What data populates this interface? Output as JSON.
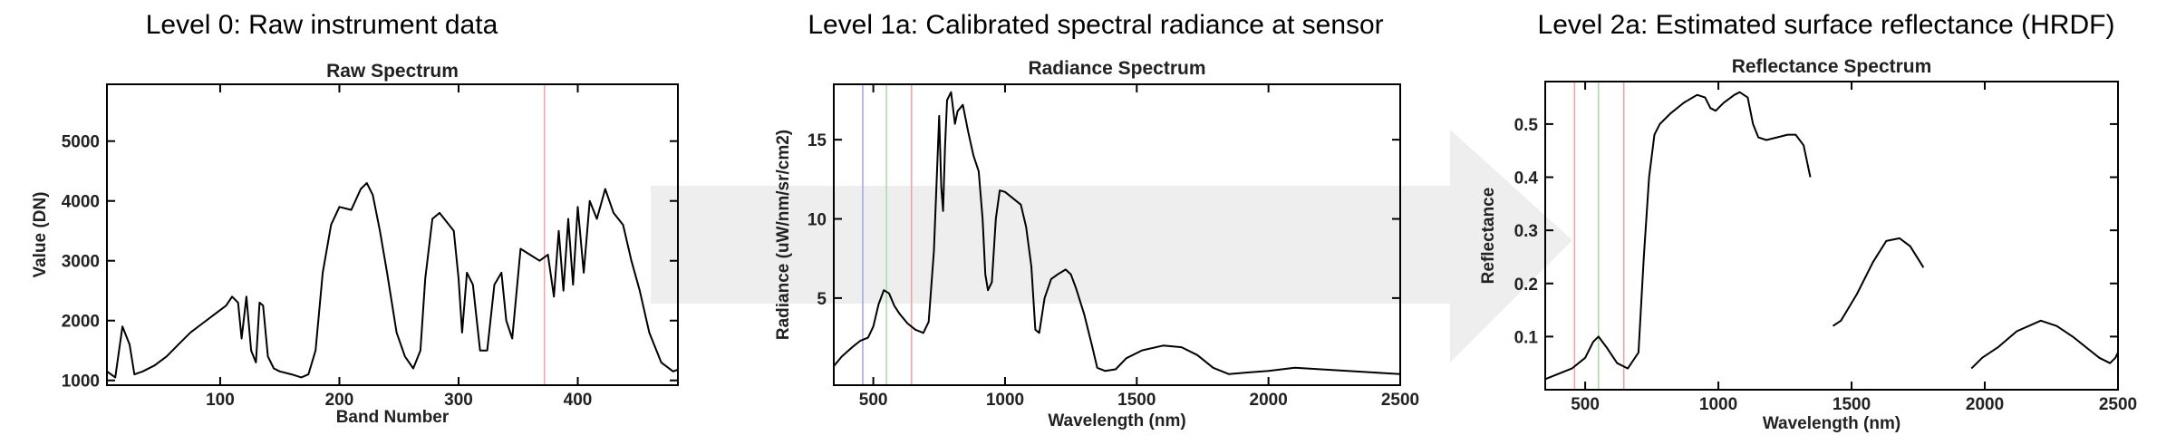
{
  "panels": [
    {
      "heading": "Level 0: Raw instrument data",
      "chart_data": {
        "type": "line",
        "title": "Raw Spectrum",
        "xlabel": "Band Number",
        "ylabel": "Value (DN)",
        "xlim": [
          5,
          484
        ],
        "ylim": [
          920,
          5950
        ],
        "x_ticks": [
          100,
          200,
          300,
          400
        ],
        "y_ticks": [
          1000,
          2000,
          3000,
          4000,
          5000
        ],
        "markers": [
          {
            "x": 372,
            "color": "#f2a0a0"
          }
        ],
        "series": [
          {
            "color": "#000000",
            "gaps": [],
            "points": [
              [
                5,
                1150
              ],
              [
                12,
                1050
              ],
              [
                18,
                1900
              ],
              [
                24,
                1600
              ],
              [
                28,
                1100
              ],
              [
                35,
                1150
              ],
              [
                45,
                1250
              ],
              [
                55,
                1400
              ],
              [
                65,
                1600
              ],
              [
                75,
                1800
              ],
              [
                85,
                1950
              ],
              [
                95,
                2100
              ],
              [
                105,
                2250
              ],
              [
                110,
                2400
              ],
              [
                115,
                2300
              ],
              [
                118,
                1700
              ],
              [
                122,
                2400
              ],
              [
                126,
                1500
              ],
              [
                130,
                1300
              ],
              [
                133,
                2300
              ],
              [
                136,
                2250
              ],
              [
                140,
                1400
              ],
              [
                145,
                1200
              ],
              [
                150,
                1150
              ],
              [
                160,
                1100
              ],
              [
                168,
                1050
              ],
              [
                174,
                1100
              ],
              [
                180,
                1500
              ],
              [
                186,
                2800
              ],
              [
                193,
                3600
              ],
              [
                200,
                3900
              ],
              [
                210,
                3850
              ],
              [
                218,
                4200
              ],
              [
                223,
                4300
              ],
              [
                228,
                4100
              ],
              [
                234,
                3500
              ],
              [
                240,
                2800
              ],
              [
                248,
                1800
              ],
              [
                255,
                1400
              ],
              [
                262,
                1200
              ],
              [
                268,
                1500
              ],
              [
                272,
                2700
              ],
              [
                278,
                3700
              ],
              [
                284,
                3800
              ],
              [
                290,
                3650
              ],
              [
                296,
                3500
              ],
              [
                300,
                2700
              ],
              [
                303,
                1800
              ],
              [
                307,
                2800
              ],
              [
                312,
                2600
              ],
              [
                318,
                1500
              ],
              [
                324,
                1500
              ],
              [
                330,
                2600
              ],
              [
                336,
                2800
              ],
              [
                340,
                2000
              ],
              [
                345,
                1700
              ],
              [
                352,
                3200
              ],
              [
                360,
                3100
              ],
              [
                368,
                3000
              ],
              [
                375,
                3100
              ],
              [
                380,
                2400
              ],
              [
                384,
                3500
              ],
              [
                388,
                2500
              ],
              [
                392,
                3700
              ],
              [
                396,
                2600
              ],
              [
                400,
                3900
              ],
              [
                405,
                2800
              ],
              [
                410,
                4000
              ],
              [
                416,
                3700
              ],
              [
                423,
                4200
              ],
              [
                430,
                3800
              ],
              [
                438,
                3600
              ],
              [
                445,
                3000
              ],
              [
                452,
                2500
              ],
              [
                460,
                1800
              ],
              [
                470,
                1300
              ],
              [
                480,
                1150
              ],
              [
                484,
                1180
              ]
            ]
          }
        ]
      }
    },
    {
      "heading": "Level 1a: Calibrated spectral radiance at sensor",
      "chart_data": {
        "type": "line",
        "title": "Radiance Spectrum",
        "xlabel": "Wavelength (nm)",
        "ylabel": "Radiance (uW/nm/sr/cm2)",
        "xlim": [
          350,
          2500
        ],
        "ylim": [
          -0.5,
          18.5
        ],
        "x_ticks": [
          500,
          1000,
          1500,
          2000,
          2500
        ],
        "y_ticks": [
          5,
          10,
          15
        ],
        "markers": [
          {
            "x": 460,
            "color": "#a0a0f2"
          },
          {
            "x": 550,
            "color": "#a0e0a0"
          },
          {
            "x": 645,
            "color": "#f2a0a0"
          }
        ],
        "series": [
          {
            "color": "#000000",
            "gaps": [],
            "points": [
              [
                350,
                0.7
              ],
              [
                380,
                1.3
              ],
              [
                420,
                1.9
              ],
              [
                450,
                2.3
              ],
              [
                480,
                2.5
              ],
              [
                500,
                3.2
              ],
              [
                520,
                4.6
              ],
              [
                540,
                5.5
              ],
              [
                560,
                5.3
              ],
              [
                580,
                4.5
              ],
              [
                600,
                4.0
              ],
              [
                630,
                3.4
              ],
              [
                660,
                3.0
              ],
              [
                690,
                2.8
              ],
              [
                710,
                3.5
              ],
              [
                730,
                8.0
              ],
              [
                750,
                16.5
              ],
              [
                758,
                12.0
              ],
              [
                765,
                10.5
              ],
              [
                772,
                14.5
              ],
              [
                780,
                17.5
              ],
              [
                795,
                18.0
              ],
              [
                810,
                16.0
              ],
              [
                820,
                16.8
              ],
              [
                840,
                17.2
              ],
              [
                860,
                15.5
              ],
              [
                880,
                14.0
              ],
              [
                900,
                13.0
              ],
              [
                915,
                10.0
              ],
              [
                925,
                6.5
              ],
              [
                935,
                5.5
              ],
              [
                950,
                6.0
              ],
              [
                965,
                10.0
              ],
              [
                980,
                11.8
              ],
              [
                1000,
                11.7
              ],
              [
                1030,
                11.3
              ],
              [
                1060,
                10.9
              ],
              [
                1080,
                9.5
              ],
              [
                1100,
                7.0
              ],
              [
                1115,
                3.0
              ],
              [
                1130,
                2.8
              ],
              [
                1150,
                5.0
              ],
              [
                1175,
                6.2
              ],
              [
                1200,
                6.5
              ],
              [
                1230,
                6.8
              ],
              [
                1250,
                6.5
              ],
              [
                1270,
                5.6
              ],
              [
                1300,
                4.0
              ],
              [
                1330,
                2.0
              ],
              [
                1350,
                0.6
              ],
              [
                1380,
                0.4
              ],
              [
                1420,
                0.5
              ],
              [
                1460,
                1.2
              ],
              [
                1520,
                1.7
              ],
              [
                1600,
                2.0
              ],
              [
                1670,
                1.9
              ],
              [
                1730,
                1.4
              ],
              [
                1790,
                0.6
              ],
              [
                1850,
                0.2
              ],
              [
                1920,
                0.3
              ],
              [
                2000,
                0.4
              ],
              [
                2100,
                0.6
              ],
              [
                2200,
                0.5
              ],
              [
                2300,
                0.4
              ],
              [
                2400,
                0.3
              ],
              [
                2500,
                0.2
              ]
            ]
          }
        ]
      }
    },
    {
      "heading": "Level 2a: Estimated surface reflectance (HRDF)",
      "chart_data": {
        "type": "line",
        "title": "Reflectance Spectrum",
        "xlabel": "Wavelength (nm)",
        "ylabel": "Reflectance",
        "xlim": [
          350,
          2500
        ],
        "ylim": [
          0.0,
          0.58
        ],
        "x_ticks": [
          500,
          1000,
          1500,
          2000,
          2500
        ],
        "y_ticks": [
          0.1,
          0.2,
          0.3,
          0.4,
          0.5
        ],
        "markers": [
          {
            "x": 460,
            "color": "#f2a0a0"
          },
          {
            "x": 550,
            "color": "#a0e0a0"
          },
          {
            "x": 645,
            "color": "#f2a0a0"
          }
        ],
        "series": [
          {
            "color": "#000000",
            "gaps": [
              1350,
              1780
            ],
            "points": [
              [
                350,
                0.02
              ],
              [
                400,
                0.03
              ],
              [
                450,
                0.04
              ],
              [
                500,
                0.06
              ],
              [
                530,
                0.09
              ],
              [
                550,
                0.1
              ],
              [
                580,
                0.08
              ],
              [
                620,
                0.05
              ],
              [
                660,
                0.04
              ],
              [
                700,
                0.07
              ],
              [
                720,
                0.25
              ],
              [
                740,
                0.4
              ],
              [
                760,
                0.48
              ],
              [
                780,
                0.5
              ],
              [
                820,
                0.52
              ],
              [
                870,
                0.54
              ],
              [
                920,
                0.555
              ],
              [
                950,
                0.55
              ],
              [
                970,
                0.53
              ],
              [
                990,
                0.525
              ],
              [
                1020,
                0.54
              ],
              [
                1060,
                0.555
              ],
              [
                1080,
                0.56
              ],
              [
                1110,
                0.55
              ],
              [
                1130,
                0.5
              ],
              [
                1150,
                0.475
              ],
              [
                1180,
                0.47
              ],
              [
                1220,
                0.475
              ],
              [
                1260,
                0.48
              ],
              [
                1290,
                0.48
              ],
              [
                1320,
                0.46
              ],
              [
                1345,
                0.4
              ],
              [
                1430,
                0.12
              ],
              [
                1460,
                0.13
              ],
              [
                1520,
                0.18
              ],
              [
                1580,
                0.24
              ],
              [
                1630,
                0.28
              ],
              [
                1680,
                0.285
              ],
              [
                1720,
                0.27
              ],
              [
                1770,
                0.23
              ],
              [
                1950,
                0.04
              ],
              [
                1990,
                0.06
              ],
              [
                2050,
                0.08
              ],
              [
                2120,
                0.11
              ],
              [
                2210,
                0.13
              ],
              [
                2270,
                0.12
              ],
              [
                2330,
                0.1
              ],
              [
                2380,
                0.08
              ],
              [
                2430,
                0.06
              ],
              [
                2470,
                0.05
              ],
              [
                2490,
                0.06
              ],
              [
                2500,
                0.07
              ]
            ]
          }
        ]
      }
    }
  ]
}
